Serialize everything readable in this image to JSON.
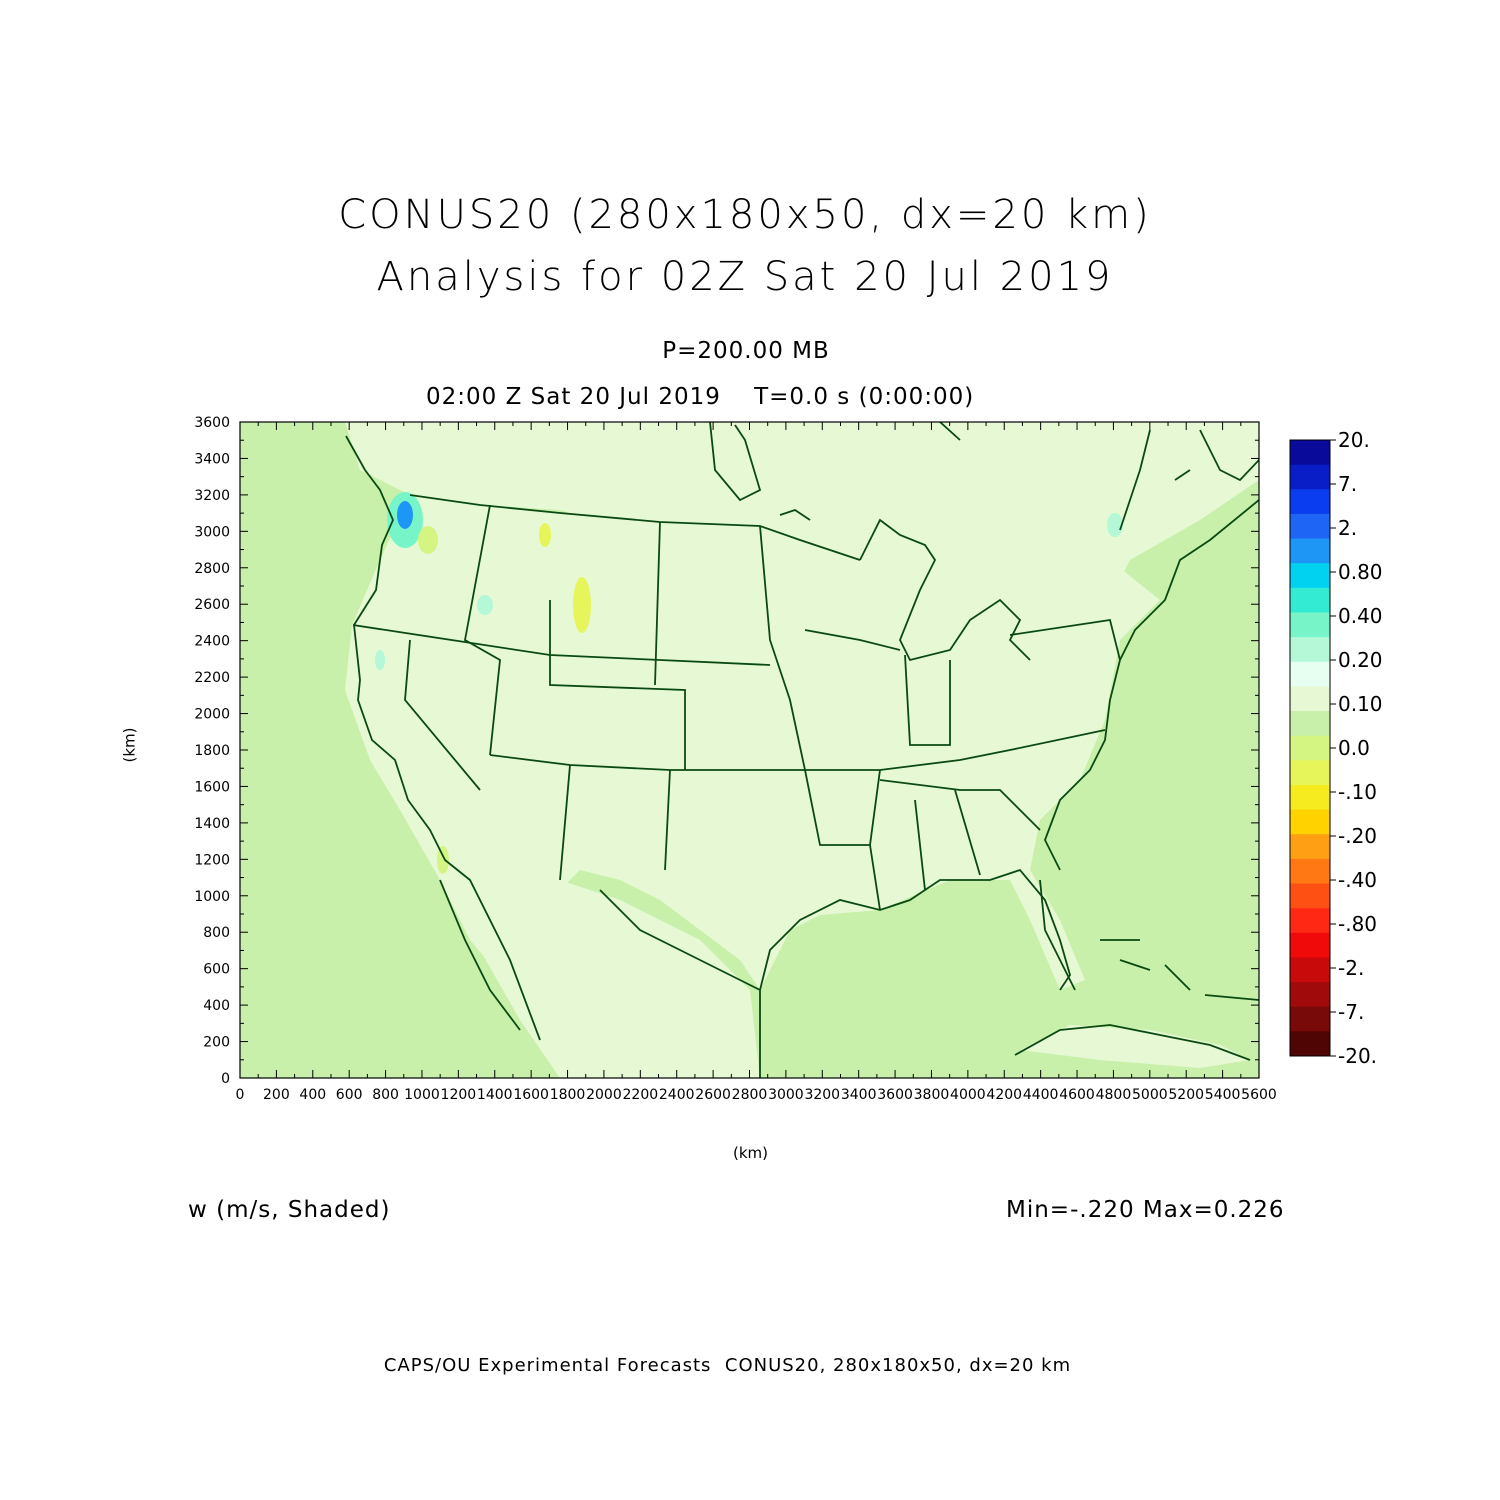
{
  "title_line1": "CONUS20 (280x180x50, dx=20 km)",
  "title_line2": "Analysis for 02Z Sat 20 Jul 2019",
  "level_label": "P=200.00 MB",
  "time_label": "02:00 Z Sat 20 Jul 2019    T=0.0 s (0:00:00)",
  "field_label": "w (m/s, Shaded)",
  "minmax_label": "Min=-.220 Max=0.226",
  "footer": "CAPS/OU Experimental Forecasts  CONUS20, 280x180x50, dx=20 km",
  "colors": {
    "background_field": "#c8f0aa",
    "land_field": "#e6f8d4",
    "boundary_line": "#0a4a12"
  },
  "chart_data": {
    "type": "heatmap",
    "xlabel": "(km)",
    "ylabel": "(km)",
    "xlim": [
      0,
      5600
    ],
    "ylim": [
      0,
      3600
    ],
    "x_ticks": [
      0,
      200,
      400,
      600,
      800,
      1000,
      1200,
      1400,
      1600,
      1800,
      2000,
      2200,
      2400,
      2600,
      2800,
      3000,
      3200,
      3400,
      3600,
      3800,
      4000,
      4200,
      4400,
      4600,
      4800,
      5000,
      5200,
      5400,
      5600
    ],
    "y_ticks": [
      0,
      200,
      400,
      600,
      800,
      1000,
      1200,
      1400,
      1600,
      1800,
      2000,
      2200,
      2400,
      2600,
      2800,
      3000,
      3200,
      3400,
      3600
    ],
    "field_min": -0.22,
    "field_max": 0.226,
    "colorbar": {
      "labels": [
        "20.",
        "7.",
        "2.",
        "0.80",
        "0.40",
        "0.20",
        "0.10",
        "0.0",
        "-.10",
        "-.20",
        "-.40",
        "-.80",
        "-2.",
        "-7.",
        "-20."
      ],
      "colors": [
        "#0a0a9a",
        "#0a1ec8",
        "#0a3cf0",
        "#1e64f5",
        "#1e96f5",
        "#00d2f0",
        "#32ebd2",
        "#78f5c8",
        "#b4f8d8",
        "#e6fff0",
        "#e6f8d4",
        "#c8f0aa",
        "#d4f582",
        "#e6f55a",
        "#f5eb1e",
        "#ffd200",
        "#ffa014",
        "#ff7814",
        "#ff5014",
        "#ff2814",
        "#f00a0a",
        "#c80a0a",
        "#a00a0a",
        "#780a0a",
        "#500505"
      ]
    }
  }
}
